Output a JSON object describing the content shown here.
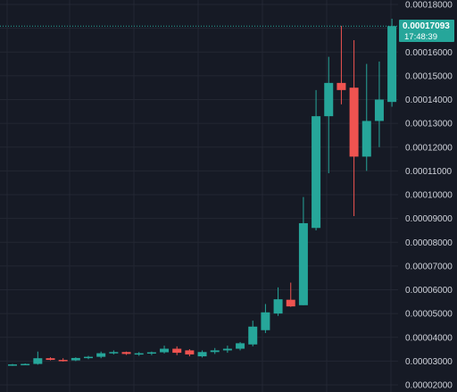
{
  "colors": {
    "background": "#161a25",
    "grid": "#232733",
    "up": "#26a69a",
    "down": "#ef5350",
    "axis_text": "#d1d4dc",
    "last_price_line": "#26a69a"
  },
  "last_price": {
    "value": "0.00017093",
    "countdown": "17:48:39"
  },
  "chart_data": {
    "type": "candlestick",
    "title": "",
    "xlabel": "",
    "ylabel": "",
    "ylim": [
      2e-05,
      0.00018
    ],
    "grid": true,
    "price_axis_position": "right",
    "y_ticks": [
      "0.00018000",
      "0.00017000",
      "0.00016000",
      "0.00015000",
      "0.00014000",
      "0.00013000",
      "0.00012000",
      "0.00011000",
      "0.00010000",
      "0.00009000",
      "0.00008000",
      "0.00007000",
      "0.00006000",
      "0.00005000",
      "0.00004000",
      "0.00003000",
      "0.00002000"
    ],
    "candles": [
      {
        "o": 2.83e-05,
        "h": 2.88e-05,
        "l": 2.8e-05,
        "c": 2.86e-05
      },
      {
        "o": 2.86e-05,
        "h": 2.9e-05,
        "l": 2.84e-05,
        "c": 2.88e-05
      },
      {
        "o": 2.88e-05,
        "h": 3.4e-05,
        "l": 2.85e-05,
        "c": 3.12e-05
      },
      {
        "o": 3.12e-05,
        "h": 3.16e-05,
        "l": 3.03e-05,
        "c": 3.05e-05
      },
      {
        "o": 3.05e-05,
        "h": 3.12e-05,
        "l": 2.98e-05,
        "c": 3.02e-05
      },
      {
        "o": 3.03e-05,
        "h": 3.16e-05,
        "l": 3e-05,
        "c": 3.13e-05
      },
      {
        "o": 3.13e-05,
        "h": 3.22e-05,
        "l": 3.08e-05,
        "c": 3.18e-05
      },
      {
        "o": 3.18e-05,
        "h": 3.4e-05,
        "l": 3.12e-05,
        "c": 3.33e-05
      },
      {
        "o": 3.33e-05,
        "h": 3.45e-05,
        "l": 3.28e-05,
        "c": 3.38e-05
      },
      {
        "o": 3.38e-05,
        "h": 3.4e-05,
        "l": 3.26e-05,
        "c": 3.3e-05
      },
      {
        "o": 3.3e-05,
        "h": 3.38e-05,
        "l": 3.22e-05,
        "c": 3.33e-05
      },
      {
        "o": 3.33e-05,
        "h": 3.4e-05,
        "l": 3.25e-05,
        "c": 3.37e-05
      },
      {
        "o": 3.37e-05,
        "h": 3.65e-05,
        "l": 3.32e-05,
        "c": 3.52e-05
      },
      {
        "o": 3.52e-05,
        "h": 3.62e-05,
        "l": 3.25e-05,
        "c": 3.35e-05
      },
      {
        "o": 3.45e-05,
        "h": 3.5e-05,
        "l": 3.2e-05,
        "c": 3.28e-05
      },
      {
        "o": 3.2e-05,
        "h": 3.45e-05,
        "l": 3.15e-05,
        "c": 3.38e-05
      },
      {
        "o": 3.38e-05,
        "h": 3.55e-05,
        "l": 3.3e-05,
        "c": 3.45e-05
      },
      {
        "o": 3.45e-05,
        "h": 3.65e-05,
        "l": 3.35e-05,
        "c": 3.52e-05
      },
      {
        "o": 3.52e-05,
        "h": 3.8e-05,
        "l": 3.45e-05,
        "c": 3.75e-05
      },
      {
        "o": 3.7e-05,
        "h": 4.7e-05,
        "l": 3.62e-05,
        "c": 4.45e-05
      },
      {
        "o": 4.3e-05,
        "h": 5.4e-05,
        "l": 4.18e-05,
        "c": 5.05e-05
      },
      {
        "o": 5e-05,
        "h": 6.1e-05,
        "l": 4.9e-05,
        "c": 5.6e-05
      },
      {
        "o": 5.58e-05,
        "h": 6.3e-05,
        "l": 5.28e-05,
        "c": 5.3e-05
      },
      {
        "o": 5.35e-05,
        "h": 9.9e-05,
        "l": 5.35e-05,
        "c": 8.8e-05
      },
      {
        "o": 8.6e-05,
        "h": 0.000144,
        "l": 8.5e-05,
        "c": 0.000133
      },
      {
        "o": 0.000133,
        "h": 0.000158,
        "l": 0.000109,
        "c": 0.000147
      },
      {
        "o": 0.000147,
        "h": 0.000171,
        "l": 0.000138,
        "c": 0.000144
      },
      {
        "o": 0.000145,
        "h": 0.000165,
        "l": 9.1e-05,
        "c": 0.000116
      },
      {
        "o": 0.000116,
        "h": 0.000155,
        "l": 0.00011,
        "c": 0.000131
      },
      {
        "o": 0.000131,
        "h": 0.000156,
        "l": 0.00012,
        "c": 0.00014
      },
      {
        "o": 0.000139,
        "h": 0.000174,
        "l": 0.000137,
        "c": 0.0001709
      }
    ]
  }
}
